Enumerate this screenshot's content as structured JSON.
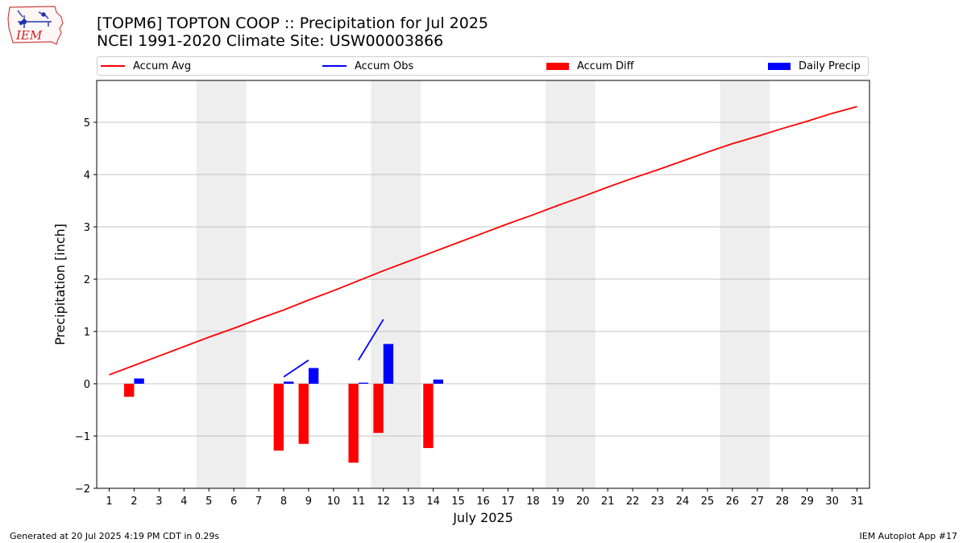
{
  "title_line1": "[TOPM6] TOPTON COOP :: Precipitation for Jul 2025",
  "title_line2": "NCEI 1991-2020 Climate Site: USW00003866",
  "logo_text": "IEM",
  "footer_left": "Generated at 20 Jul 2025 4:19 PM CDT in 0.29s",
  "footer_right": "IEM Autoplot App #17",
  "colors": {
    "accum_avg": "#ff0000",
    "accum_obs": "#0000ff",
    "accum_diff": "#ff0000",
    "daily_precip": "#0000ff",
    "weekend_shade": "#eeeeee",
    "grid": "#b0b0b0"
  },
  "legend": [
    {
      "label": "Accum Avg",
      "kind": "line",
      "color": "#ff0000"
    },
    {
      "label": "Accum Obs",
      "kind": "line",
      "color": "#0000ff"
    },
    {
      "label": "Accum Diff",
      "kind": "box",
      "color": "#ff0000"
    },
    {
      "label": "Daily Precip",
      "kind": "box",
      "color": "#0000ff"
    }
  ],
  "chart_data": {
    "type": "bar",
    "title": "[TOPM6] TOPTON COOP :: Precipitation for Jul 2025",
    "subtitle": "NCEI 1991-2020 Climate Site: USW00003866",
    "xlabel": "July 2025",
    "ylabel": "Precipitation [inch]",
    "xlim": [
      0.5,
      31.5
    ],
    "ylim": [
      -2,
      5.8
    ],
    "x_ticks": [
      1,
      2,
      3,
      4,
      5,
      6,
      7,
      8,
      9,
      10,
      11,
      12,
      13,
      14,
      15,
      16,
      17,
      18,
      19,
      20,
      21,
      22,
      23,
      24,
      25,
      26,
      27,
      28,
      29,
      30,
      31
    ],
    "y_ticks": [
      -2,
      -1,
      0,
      1,
      2,
      3,
      4,
      5
    ],
    "y_tick_labels": [
      "−2",
      "−1",
      "0",
      "1",
      "2",
      "3",
      "4",
      "5"
    ],
    "grid": "horizontal",
    "legend_position": "top",
    "weekend_shading": [
      [
        4.5,
        6.5
      ],
      [
        11.5,
        13.5
      ],
      [
        18.5,
        20.5
      ],
      [
        25.5,
        27.5
      ]
    ],
    "series": [
      {
        "name": "Accum Avg",
        "type": "line",
        "color": "#ff0000",
        "x": [
          1,
          2,
          3,
          4,
          5,
          6,
          7,
          8,
          9,
          10,
          11,
          12,
          13,
          14,
          15,
          16,
          17,
          18,
          19,
          20,
          21,
          22,
          23,
          24,
          25,
          26,
          27,
          28,
          29,
          30,
          31
        ],
        "values": [
          0.17,
          0.35,
          0.53,
          0.71,
          0.89,
          1.06,
          1.24,
          1.41,
          1.6,
          1.78,
          1.97,
          2.16,
          2.34,
          2.52,
          2.7,
          2.88,
          3.06,
          3.23,
          3.41,
          3.58,
          3.76,
          3.93,
          4.09,
          4.26,
          4.43,
          4.59,
          4.73,
          4.88,
          5.02,
          5.17,
          5.3
        ]
      },
      {
        "name": "Accum Obs",
        "type": "line",
        "color": "#0000ff",
        "segments": [
          {
            "x": [
              8,
              9
            ],
            "values": [
              0.13,
              0.45
            ]
          },
          {
            "x": [
              11,
              12
            ],
            "values": [
              0.45,
              1.23
            ]
          }
        ]
      },
      {
        "name": "Accum Diff",
        "type": "bar",
        "color": "#ff0000",
        "x": [
          2,
          8,
          9,
          11,
          12,
          14
        ],
        "values": [
          -0.25,
          -1.28,
          -1.15,
          -1.51,
          -0.94,
          -1.23
        ]
      },
      {
        "name": "Daily Precip",
        "type": "bar",
        "color": "#0000ff",
        "x": [
          2,
          8,
          9,
          11,
          12,
          14
        ],
        "values": [
          0.1,
          0.04,
          0.3,
          0.02,
          0.76,
          0.08
        ]
      }
    ]
  }
}
